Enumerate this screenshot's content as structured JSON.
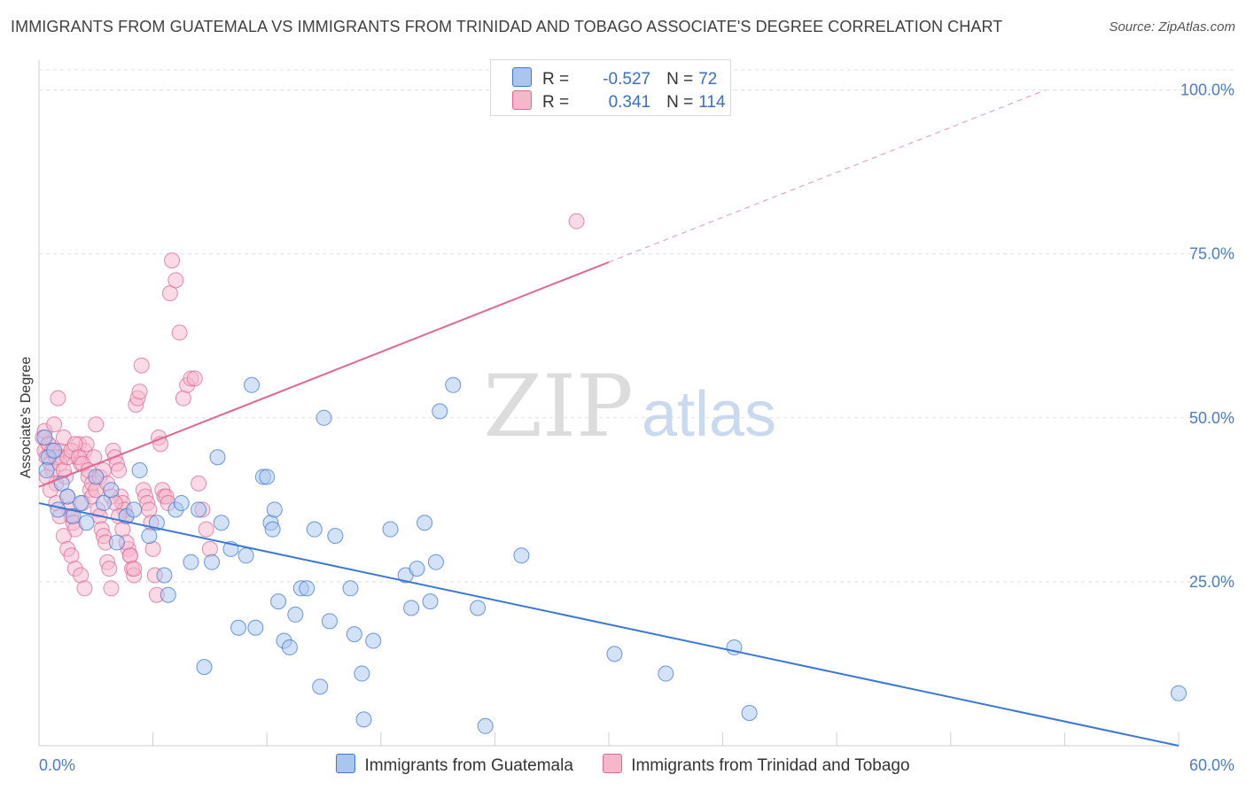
{
  "header": {
    "title": "IMMIGRANTS FROM GUATEMALA VS IMMIGRANTS FROM TRINIDAD AND TOBAGO ASSOCIATE'S DEGREE CORRELATION CHART",
    "source": "Source: ZipAtlas.com"
  },
  "legend": {
    "r_label": "R =",
    "n_label": "N =",
    "series1": {
      "r": "-0.527",
      "n": "72"
    },
    "series2": {
      "r": "0.341",
      "n": "114"
    }
  },
  "watermark": {
    "zip": "ZIP",
    "atlas": "atlas"
  },
  "colors": {
    "blue": "#3a78d4",
    "blue_fill": "#a9c6ef",
    "pink": "#e0678f",
    "pink_fill": "#f5b8cb",
    "grid": "#e0e0e0",
    "tick_text": "#4a7cc7"
  },
  "chart_data": {
    "type": "scatter",
    "title": "IMMIGRANTS FROM GUATEMALA VS IMMIGRANTS FROM TRINIDAD AND TOBAGO ASSOCIATE'S DEGREE CORRELATION CHART",
    "xlabel": "",
    "ylabel": "Associate's Degree",
    "xlim": [
      0,
      60
    ],
    "ylim": [
      0,
      104
    ],
    "x_tick_labels": [
      "0.0%",
      "60.0%"
    ],
    "y_ticks": [
      25,
      50,
      75,
      100
    ],
    "y_tick_labels": [
      "25.0%",
      "50.0%",
      "75.0%",
      "100.0%"
    ],
    "grid": true,
    "legend_position": "top-center",
    "series": [
      {
        "name": "Immigrants from Guatemala",
        "color": "#3a78d4",
        "r": -0.527,
        "n": 72,
        "trend": {
          "x0": 0,
          "y0": 37,
          "x1": 60,
          "y1": 0,
          "solid_to": 60
        },
        "points": [
          [
            0.3,
            47
          ],
          [
            0.5,
            44
          ],
          [
            0.8,
            45
          ],
          [
            0.4,
            42
          ],
          [
            1.2,
            40
          ],
          [
            1.5,
            38
          ],
          [
            1.0,
            36
          ],
          [
            1.8,
            35
          ],
          [
            2.2,
            37
          ],
          [
            2.5,
            34
          ],
          [
            3.0,
            41
          ],
          [
            3.4,
            37
          ],
          [
            3.8,
            39
          ],
          [
            4.1,
            31
          ],
          [
            4.6,
            35
          ],
          [
            5.0,
            36
          ],
          [
            5.3,
            42
          ],
          [
            5.8,
            32
          ],
          [
            6.2,
            34
          ],
          [
            6.6,
            26
          ],
          [
            6.8,
            23
          ],
          [
            7.2,
            36
          ],
          [
            7.5,
            37
          ],
          [
            8.0,
            28
          ],
          [
            8.4,
            36
          ],
          [
            8.7,
            12
          ],
          [
            9.1,
            28
          ],
          [
            9.4,
            44
          ],
          [
            9.6,
            34
          ],
          [
            10.1,
            30
          ],
          [
            10.5,
            18
          ],
          [
            10.9,
            29
          ],
          [
            11.2,
            55
          ],
          [
            11.4,
            18
          ],
          [
            11.8,
            41
          ],
          [
            12.0,
            41
          ],
          [
            12.2,
            34
          ],
          [
            12.3,
            33
          ],
          [
            12.4,
            36
          ],
          [
            12.6,
            22
          ],
          [
            12.9,
            16
          ],
          [
            13.2,
            15
          ],
          [
            13.5,
            20
          ],
          [
            13.8,
            24
          ],
          [
            14.1,
            24
          ],
          [
            14.5,
            33
          ],
          [
            14.8,
            9
          ],
          [
            15.0,
            50
          ],
          [
            15.3,
            19
          ],
          [
            15.6,
            32
          ],
          [
            16.4,
            24
          ],
          [
            16.6,
            17
          ],
          [
            17.0,
            11
          ],
          [
            17.6,
            16
          ],
          [
            17.1,
            4
          ],
          [
            18.5,
            33
          ],
          [
            19.3,
            26
          ],
          [
            19.6,
            21
          ],
          [
            19.9,
            27
          ],
          [
            20.3,
            34
          ],
          [
            20.6,
            22
          ],
          [
            20.9,
            28
          ],
          [
            21.1,
            51
          ],
          [
            21.8,
            55
          ],
          [
            23.1,
            21
          ],
          [
            23.5,
            3
          ],
          [
            25.4,
            29
          ],
          [
            30.3,
            14
          ],
          [
            33.0,
            11
          ],
          [
            36.6,
            15
          ],
          [
            37.4,
            5
          ],
          [
            60.0,
            8
          ]
        ]
      },
      {
        "name": "Immigrants from Trinidad and Tobago",
        "color": "#e0678f",
        "r": 0.341,
        "n": 114,
        "trend": {
          "x0": 0,
          "y0": 39.5,
          "x1": 53,
          "y1": 100,
          "solid_to": 30
        },
        "points": [
          [
            0.2,
            47
          ],
          [
            0.3,
            45
          ],
          [
            0.4,
            44
          ],
          [
            0.5,
            46
          ],
          [
            0.6,
            43
          ],
          [
            0.7,
            42
          ],
          [
            0.3,
            48
          ],
          [
            0.8,
            49
          ],
          [
            0.9,
            40
          ],
          [
            1.0,
            53
          ],
          [
            1.1,
            45
          ],
          [
            1.2,
            44
          ],
          [
            1.3,
            47
          ],
          [
            1.4,
            41
          ],
          [
            1.5,
            38
          ],
          [
            1.6,
            36
          ],
          [
            1.7,
            35
          ],
          [
            1.8,
            34
          ],
          [
            1.9,
            33
          ],
          [
            2.0,
            44
          ],
          [
            2.1,
            46
          ],
          [
            2.2,
            43
          ],
          [
            2.3,
            37
          ],
          [
            2.4,
            45
          ],
          [
            2.5,
            46
          ],
          [
            2.6,
            41
          ],
          [
            2.7,
            39
          ],
          [
            2.8,
            38
          ],
          [
            2.9,
            44
          ],
          [
            3.0,
            49
          ],
          [
            3.1,
            36
          ],
          [
            3.2,
            35
          ],
          [
            3.3,
            33
          ],
          [
            3.4,
            32
          ],
          [
            3.5,
            31
          ],
          [
            3.6,
            28
          ],
          [
            3.7,
            27
          ],
          [
            3.8,
            24
          ],
          [
            3.9,
            45
          ],
          [
            4.0,
            44
          ],
          [
            4.1,
            43
          ],
          [
            4.2,
            42
          ],
          [
            4.3,
            38
          ],
          [
            4.4,
            37
          ],
          [
            4.5,
            36
          ],
          [
            4.6,
            35
          ],
          [
            4.7,
            30
          ],
          [
            4.8,
            29
          ],
          [
            4.9,
            27
          ],
          [
            5.0,
            26
          ],
          [
            5.1,
            52
          ],
          [
            5.2,
            53
          ],
          [
            5.3,
            54
          ],
          [
            5.4,
            58
          ],
          [
            5.5,
            39
          ],
          [
            5.6,
            38
          ],
          [
            5.7,
            37
          ],
          [
            5.8,
            36
          ],
          [
            5.9,
            34
          ],
          [
            6.0,
            30
          ],
          [
            6.1,
            26
          ],
          [
            6.2,
            23
          ],
          [
            6.3,
            47
          ],
          [
            6.4,
            46
          ],
          [
            6.5,
            39
          ],
          [
            6.6,
            38
          ],
          [
            6.7,
            38
          ],
          [
            6.8,
            37
          ],
          [
            6.9,
            69
          ],
          [
            7.0,
            74
          ],
          [
            7.2,
            71
          ],
          [
            7.4,
            63
          ],
          [
            7.6,
            53
          ],
          [
            7.8,
            55
          ],
          [
            8.0,
            56
          ],
          [
            8.2,
            56
          ],
          [
            8.4,
            40
          ],
          [
            8.6,
            36
          ],
          [
            8.8,
            33
          ],
          [
            9.0,
            30
          ],
          [
            0.4,
            41
          ],
          [
            0.6,
            39
          ],
          [
            0.9,
            37
          ],
          [
            1.1,
            35
          ],
          [
            1.3,
            32
          ],
          [
            1.5,
            30
          ],
          [
            1.7,
            29
          ],
          [
            1.9,
            27
          ],
          [
            2.2,
            26
          ],
          [
            2.4,
            24
          ],
          [
            0.5,
            46
          ],
          [
            0.7,
            45
          ],
          [
            0.9,
            44
          ],
          [
            1.1,
            43
          ],
          [
            1.3,
            42
          ],
          [
            1.5,
            44
          ],
          [
            1.7,
            45
          ],
          [
            1.9,
            46
          ],
          [
            2.1,
            44
          ],
          [
            2.3,
            43
          ],
          [
            2.6,
            42
          ],
          [
            2.8,
            40
          ],
          [
            3.0,
            39
          ],
          [
            3.2,
            41
          ],
          [
            3.4,
            42
          ],
          [
            3.6,
            40
          ],
          [
            3.8,
            38
          ],
          [
            4.0,
            37
          ],
          [
            4.2,
            35
          ],
          [
            4.4,
            33
          ],
          [
            4.6,
            31
          ],
          [
            4.8,
            29
          ],
          [
            5.0,
            27
          ],
          [
            28.3,
            80
          ]
        ]
      }
    ]
  },
  "bottom_legend": {
    "series1": "Immigrants from Guatemala",
    "series2": "Immigrants from Trinidad and Tobago"
  }
}
